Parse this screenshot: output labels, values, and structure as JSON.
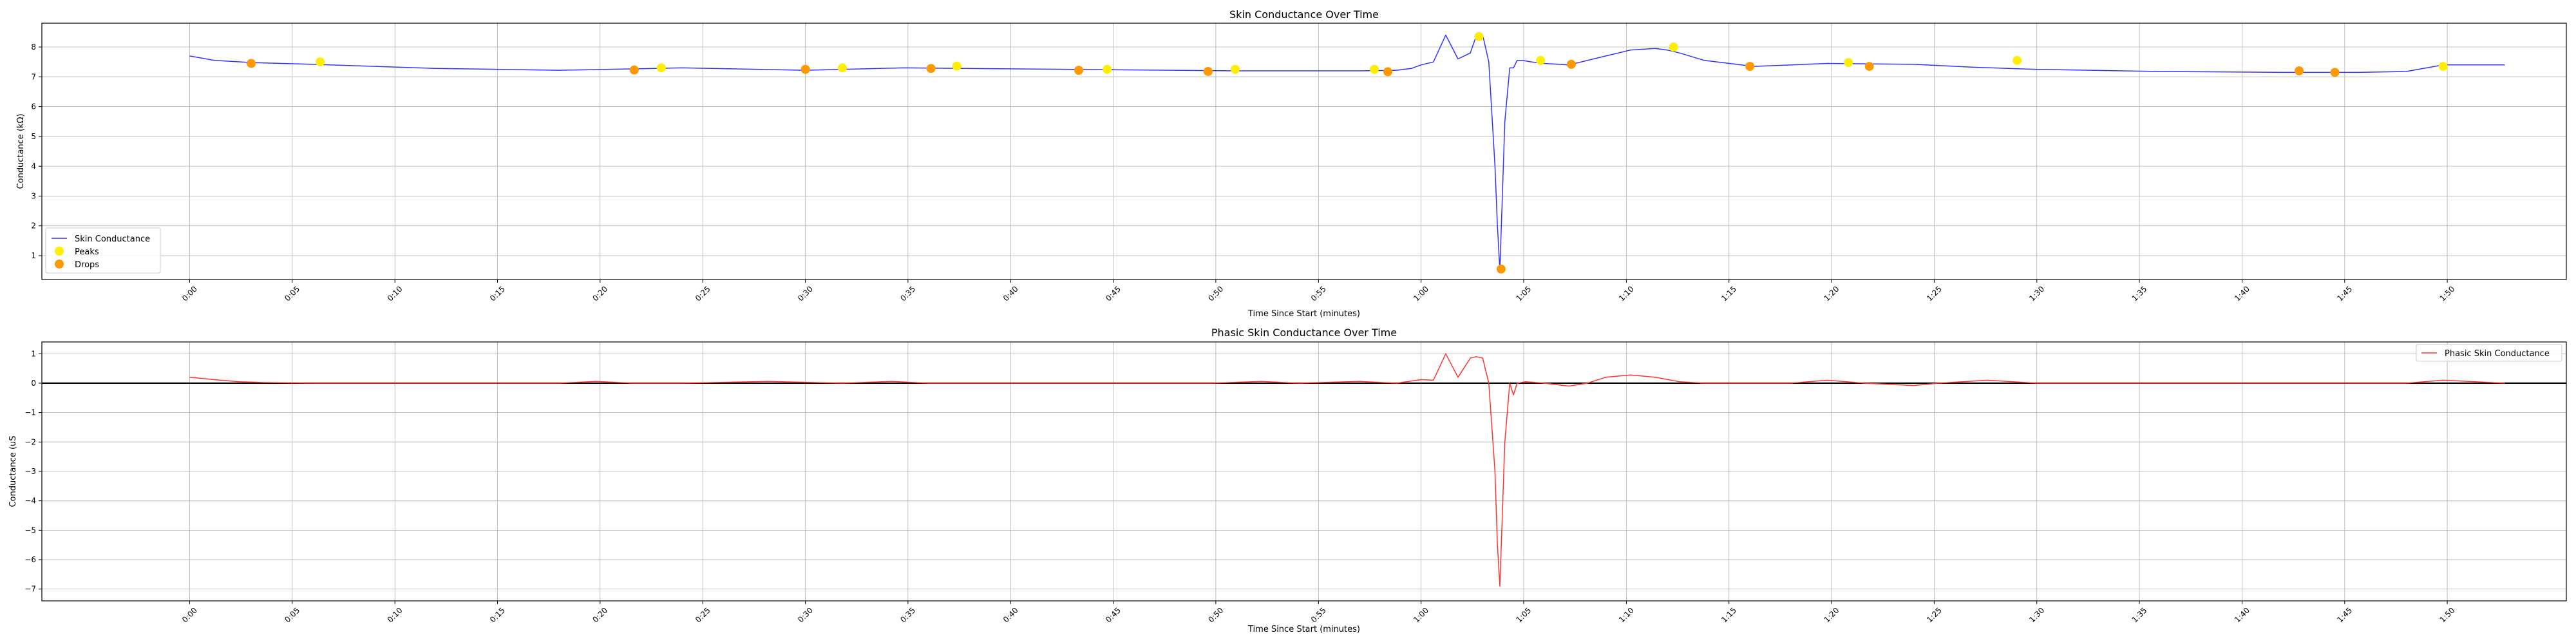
{
  "chart_data": [
    {
      "type": "line",
      "title": "Skin Conductance Over Time",
      "xlabel": "Time Since Start (minutes)",
      "ylabel": "Conductance (kΩ)",
      "xlim": [
        -0.12,
        1.93
      ],
      "ylim": [
        0.2,
        8.8
      ],
      "x_unit": "minutes (m:ss tick labels)",
      "xticks": [
        0,
        0.0833,
        0.1667,
        0.25,
        0.3333,
        0.4167,
        0.5,
        0.5833,
        0.6667,
        0.75,
        0.8333,
        0.9167,
        1.0,
        1.0833,
        1.1667,
        1.25,
        1.3333,
        1.4167,
        1.5,
        1.5833,
        1.6667,
        1.75,
        1.8333
      ],
      "xtick_labels": [
        "0:00",
        "0:05",
        "0:10",
        "0:15",
        "0:20",
        "0:25",
        "0:30",
        "0:35",
        "0:40",
        "0:45",
        "0:50",
        "0:55",
        "1:00",
        "1:05",
        "1:10",
        "1:15",
        "1:20",
        "1:25",
        "1:30",
        "1:35",
        "1:40",
        "1:45",
        "1:50"
      ],
      "yticks": [
        1,
        2,
        3,
        4,
        5,
        6,
        7,
        8
      ],
      "ytick_labels": [
        "1",
        "2",
        "3",
        "4",
        "5",
        "6",
        "7",
        "8"
      ],
      "grid": true,
      "legend_position": "lower-left",
      "series": [
        {
          "name": "Skin Conductance",
          "kind": "line",
          "color": "#3333ff",
          "x": [
            0.0,
            0.02,
            0.05,
            0.1,
            0.2,
            0.3,
            0.4,
            0.5,
            0.58,
            0.85,
            0.95,
            0.98,
            0.992,
            1.0,
            1.01,
            1.02,
            1.03,
            1.04,
            1.045,
            1.05,
            1.055,
            1.06,
            1.062,
            1.064,
            1.068,
            1.072,
            1.075,
            1.078,
            1.082,
            1.09,
            1.1,
            1.12,
            1.15,
            1.17,
            1.19,
            1.2,
            1.21,
            1.23,
            1.27,
            1.33,
            1.4,
            1.45,
            1.5,
            1.6,
            1.7,
            1.76,
            1.8,
            1.83,
            1.88
          ],
          "y": [
            7.7,
            7.55,
            7.48,
            7.42,
            7.28,
            7.22,
            7.3,
            7.22,
            7.3,
            7.2,
            7.2,
            7.22,
            7.28,
            7.4,
            7.5,
            8.4,
            7.6,
            7.8,
            8.4,
            8.4,
            7.5,
            4.0,
            2.0,
            0.5,
            5.5,
            7.3,
            7.3,
            7.55,
            7.55,
            7.5,
            7.45,
            7.4,
            7.7,
            7.9,
            7.95,
            7.9,
            7.8,
            7.55,
            7.35,
            7.45,
            7.42,
            7.32,
            7.25,
            7.18,
            7.15,
            7.15,
            7.18,
            7.4,
            7.4
          ]
        },
        {
          "name": "Peaks",
          "kind": "scatter",
          "color": "#ffee00",
          "x": [
            0.106,
            0.383,
            0.53,
            0.623,
            0.745,
            0.849,
            0.962,
            1.047,
            1.097,
            1.205,
            1.347,
            1.484,
            1.83
          ],
          "y": [
            7.5,
            7.3,
            7.3,
            7.36,
            7.25,
            7.25,
            7.25,
            8.35,
            7.55,
            8.0,
            7.48,
            7.55,
            7.35
          ]
        },
        {
          "name": "Drops",
          "kind": "scatter",
          "color": "#ff9900",
          "x": [
            0.05,
            0.361,
            0.5,
            0.602,
            0.722,
            0.827,
            0.973,
            1.065,
            1.122,
            1.267,
            1.364,
            1.713,
            1.742
          ],
          "y": [
            7.45,
            7.23,
            7.25,
            7.28,
            7.22,
            7.18,
            7.17,
            0.55,
            7.42,
            7.35,
            7.35,
            7.2,
            7.15
          ]
        }
      ]
    },
    {
      "type": "line",
      "title": "Phasic Skin Conductance Over Time",
      "xlabel": "Time Since Start (minutes)",
      "ylabel": "Conductance (uS",
      "xlim": [
        -0.12,
        1.93
      ],
      "ylim": [
        -7.4,
        1.4
      ],
      "xticks": [
        0,
        0.0833,
        0.1667,
        0.25,
        0.3333,
        0.4167,
        0.5,
        0.5833,
        0.6667,
        0.75,
        0.8333,
        0.9167,
        1.0,
        1.0833,
        1.1667,
        1.25,
        1.3333,
        1.4167,
        1.5,
        1.5833,
        1.6667,
        1.75,
        1.8333
      ],
      "xtick_labels": [
        "0:00",
        "0:05",
        "0:10",
        "0:15",
        "0:20",
        "0:25",
        "0:30",
        "0:35",
        "0:40",
        "0:45",
        "0:50",
        "0:55",
        "1:00",
        "1:05",
        "1:10",
        "1:15",
        "1:20",
        "1:25",
        "1:30",
        "1:35",
        "1:40",
        "1:45",
        "1:50"
      ],
      "yticks": [
        1,
        0,
        -1,
        -2,
        -3,
        -4,
        -5,
        -6,
        -7
      ],
      "ytick_labels": [
        "1",
        "0",
        "−1",
        "−2",
        "−3",
        "−4",
        "−5",
        "−6",
        "−7"
      ],
      "grid": true,
      "zero_line": true,
      "legend_position": "upper-right",
      "series": [
        {
          "name": "Phasic Skin Conductance",
          "kind": "line",
          "color": "#ff3333",
          "x": [
            0.0,
            0.02,
            0.04,
            0.06,
            0.1,
            0.3,
            0.33,
            0.36,
            0.4,
            0.47,
            0.53,
            0.57,
            0.6,
            0.65,
            0.83,
            0.87,
            0.9,
            0.95,
            0.98,
            1.0,
            1.01,
            1.02,
            1.03,
            1.04,
            1.045,
            1.05,
            1.055,
            1.06,
            1.062,
            1.064,
            1.068,
            1.072,
            1.075,
            1.078,
            1.085,
            1.1,
            1.12,
            1.135,
            1.15,
            1.17,
            1.19,
            1.21,
            1.23,
            1.3,
            1.33,
            1.36,
            1.4,
            1.42,
            1.46,
            1.5,
            1.8,
            1.83,
            1.88
          ],
          "y": [
            0.2,
            0.12,
            0.05,
            0.02,
            0.0,
            0.0,
            0.06,
            0.0,
            0.0,
            0.06,
            0.0,
            0.06,
            0.0,
            0.0,
            0.0,
            0.06,
            0.0,
            0.06,
            0.0,
            0.12,
            0.1,
            1.0,
            0.2,
            0.85,
            0.9,
            0.85,
            0.0,
            -3.0,
            -5.5,
            -6.9,
            -2.0,
            0.0,
            -0.4,
            0.0,
            0.05,
            0.0,
            -0.1,
            0.0,
            0.2,
            0.28,
            0.2,
            0.05,
            0.0,
            0.0,
            0.1,
            0.0,
            -0.08,
            0.0,
            0.1,
            0.0,
            0.0,
            0.1,
            0.0
          ]
        }
      ]
    }
  ]
}
